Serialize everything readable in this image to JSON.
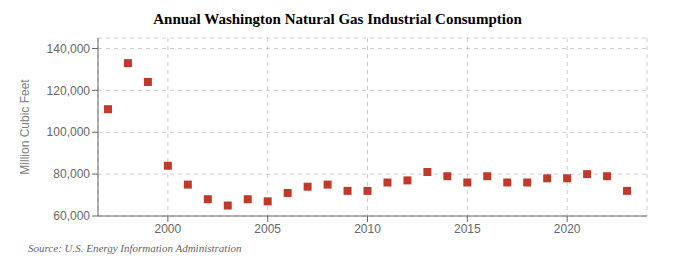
{
  "chart_data": {
    "type": "scatter",
    "title": "Annual Washington Natural Gas Industrial Consumption",
    "ylabel": "Million Cubic Feet",
    "annotation": "Source: U.S. Energy Information Administration",
    "x": [
      1997,
      1998,
      1999,
      2000,
      2001,
      2002,
      2003,
      2004,
      2005,
      2006,
      2007,
      2008,
      2009,
      2010,
      2011,
      2012,
      2013,
      2014,
      2015,
      2016,
      2017,
      2018,
      2019,
      2020,
      2021,
      2022,
      2023
    ],
    "values": [
      111000,
      133000,
      124000,
      84000,
      75000,
      68000,
      65000,
      68000,
      67000,
      71000,
      74000,
      75000,
      72000,
      72000,
      76000,
      77000,
      81000,
      79000,
      76000,
      79000,
      76000,
      76000,
      78000,
      78000,
      80000,
      79000,
      72000
    ],
    "color": "#c0392b",
    "marker": "square",
    "xlim": [
      1996.5,
      2024
    ],
    "ylim": [
      60000,
      145000
    ],
    "xticks": [
      2000,
      2005,
      2010,
      2015,
      2020
    ],
    "yticks": [
      {
        "value": 60000,
        "label": "60,000"
      },
      {
        "value": 80000,
        "label": "80,000"
      },
      {
        "value": 100000,
        "label": "100,000"
      },
      {
        "value": 120000,
        "label": "120,000"
      },
      {
        "value": 140000,
        "label": "140,000"
      }
    ],
    "grid": true
  }
}
